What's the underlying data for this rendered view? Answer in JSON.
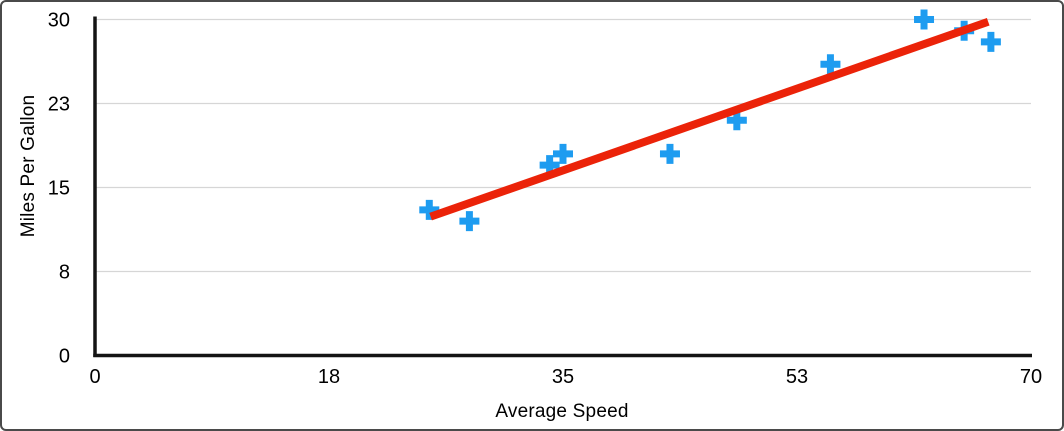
{
  "figure": {
    "background": "#FFFFFF",
    "border_color": "#4A4A4A"
  },
  "chart_data": {
    "type": "scatter",
    "title": "",
    "xlabel": "Average Speed",
    "ylabel": "Miles Per Gallon",
    "xlim": [
      0,
      70
    ],
    "ylim": [
      0,
      30
    ],
    "grid": "horizontal-only",
    "legend": "none",
    "axis_color": "#141414",
    "gridline_color": "#D6D6D6",
    "tick_label_color": "#000000",
    "x_ticks": [
      {
        "value": 0,
        "label": "0"
      },
      {
        "value": 17.5,
        "label": "18"
      },
      {
        "value": 35,
        "label": "35"
      },
      {
        "value": 52.5,
        "label": "53"
      },
      {
        "value": 70,
        "label": "70"
      }
    ],
    "y_ticks": [
      {
        "value": 0,
        "label": "0"
      },
      {
        "value": 7.5,
        "label": "8"
      },
      {
        "value": 15,
        "label": "15"
      },
      {
        "value": 22.5,
        "label": "23"
      },
      {
        "value": 30,
        "label": "30"
      }
    ],
    "series": [
      {
        "name": "miles-per-gallon-vs-average-speed",
        "marker": "plus",
        "color": "#1E9CF0",
        "points": [
          {
            "x": 25,
            "y": 13
          },
          {
            "x": 28,
            "y": 12
          },
          {
            "x": 34,
            "y": 17
          },
          {
            "x": 35,
            "y": 18
          },
          {
            "x": 43,
            "y": 18
          },
          {
            "x": 48,
            "y": 21
          },
          {
            "x": 55,
            "y": 26
          },
          {
            "x": 62,
            "y": 30
          },
          {
            "x": 65,
            "y": 29
          },
          {
            "x": 67,
            "y": 28
          }
        ]
      }
    ],
    "trendline": {
      "type": "linear",
      "color": "#EB2309",
      "stroke_width": 8,
      "x_start": 25.1,
      "y_start": 12.4,
      "x_end": 66.8,
      "y_end": 29.8
    }
  }
}
